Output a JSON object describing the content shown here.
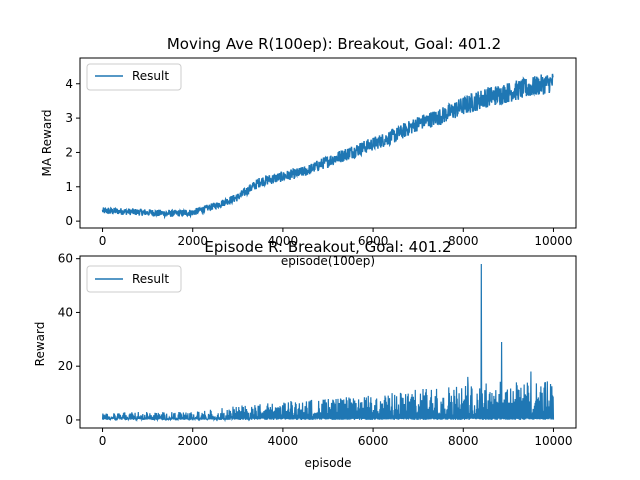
{
  "chart_data": [
    {
      "type": "line",
      "title": "Moving Ave R(100ep): Breakout, Goal: 401.2",
      "xlabel": "episode(100ep)",
      "ylabel": "MA Reward",
      "xlim": [
        -500,
        10500
      ],
      "ylim": [
        -0.2,
        4.75
      ],
      "xticks": [
        0,
        2000,
        4000,
        6000,
        8000,
        10000
      ],
      "yticks": [
        0,
        1,
        2,
        3,
        4
      ],
      "legend": "upper-left",
      "grid": false,
      "color": "#1f77b4",
      "series": [
        {
          "name": "Result",
          "x": [
            0,
            500,
            1000,
            1500,
            2000,
            2500,
            3000,
            3500,
            4000,
            4500,
            5000,
            5500,
            6000,
            6500,
            7000,
            7500,
            8000,
            8500,
            9000,
            9500,
            10000
          ],
          "y": [
            0.3,
            0.28,
            0.25,
            0.22,
            0.25,
            0.45,
            0.7,
            1.15,
            1.3,
            1.45,
            1.75,
            2.0,
            2.25,
            2.5,
            2.85,
            3.05,
            3.35,
            3.6,
            3.75,
            3.9,
            4.05
          ],
          "noise": [
            0.1,
            0.1,
            0.1,
            0.1,
            0.1,
            0.1,
            0.12,
            0.15,
            0.15,
            0.15,
            0.18,
            0.2,
            0.2,
            0.22,
            0.22,
            0.25,
            0.28,
            0.3,
            0.3,
            0.3,
            0.3
          ]
        }
      ]
    },
    {
      "type": "line",
      "title": "Episode R: Breakout, Goal: 401.2",
      "xlabel": "episode",
      "ylabel": "Reward",
      "xlim": [
        -500,
        10500
      ],
      "ylim": [
        -3,
        61
      ],
      "xticks": [
        0,
        2000,
        4000,
        6000,
        8000,
        10000
      ],
      "yticks": [
        0,
        20,
        40,
        60
      ],
      "legend": "upper-left",
      "grid": false,
      "color": "#1f77b4",
      "series": [
        {
          "name": "Result",
          "x": [
            0,
            2000,
            2500,
            3000,
            4000,
            5000,
            6000,
            7000,
            8000,
            9000,
            10000
          ],
          "y": [
            1,
            1,
            1.5,
            2,
            3,
            3.5,
            4,
            5,
            5.5,
            6,
            6
          ],
          "noise": [
            3,
            3,
            4,
            5,
            6,
            7,
            8,
            10,
            12,
            13,
            13
          ],
          "spikes": [
            {
              "x": 8400,
              "y": 58
            },
            {
              "x": 8850,
              "y": 29
            },
            {
              "x": 8100,
              "y": 16
            },
            {
              "x": 9500,
              "y": 18
            }
          ]
        }
      ]
    }
  ]
}
